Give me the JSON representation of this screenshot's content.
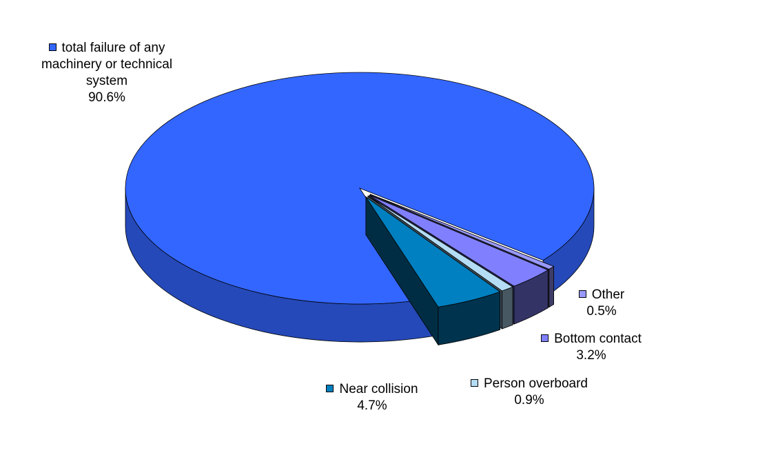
{
  "chart_data": {
    "type": "pie",
    "categories": [
      "total failure of any machinery or technical system",
      "Other",
      "Bottom contact",
      "Person overboard",
      "Near collision"
    ],
    "values": [
      90.6,
      0.5,
      3.2,
      0.9,
      4.7
    ],
    "value_labels": [
      "90.6%",
      "0.5%",
      "3.2%",
      "0.9%",
      "4.7%"
    ],
    "colors": [
      "#3366ff",
      "#9999ff",
      "#8080ff",
      "#b4dcf5",
      "#0080c0"
    ]
  }
}
